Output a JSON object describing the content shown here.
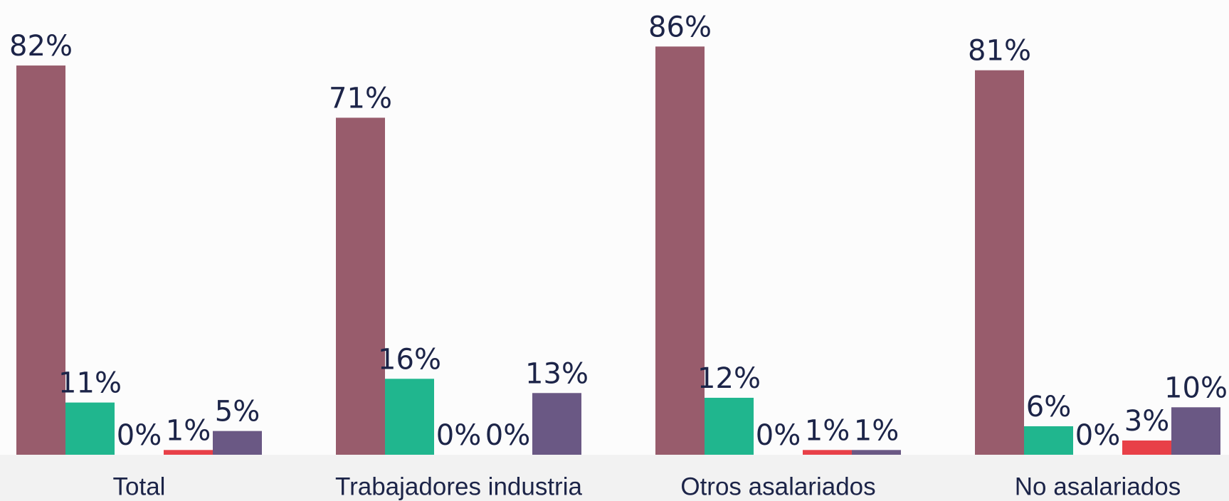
{
  "chart_data": {
    "type": "bar",
    "categories": [
      "Total",
      "Trabajadores industria",
      "Otros asalariados",
      "No asalariados"
    ],
    "series": [
      {
        "color": "#985c6c",
        "values": [
          82,
          71,
          86,
          81
        ],
        "value_labels": [
          "82%",
          "71%",
          "86%",
          "81%"
        ]
      },
      {
        "color": "#20b68e",
        "values": [
          11,
          16,
          12,
          6
        ],
        "value_labels": [
          "11%",
          "16%",
          "12%",
          "6%"
        ]
      },
      {
        "color": "#2f3a6e",
        "values": [
          0,
          0,
          0,
          0
        ],
        "value_labels": [
          "0%",
          "0%",
          "0%",
          "0%"
        ]
      },
      {
        "color": "#e84048",
        "values": [
          1,
          0,
          1,
          3
        ],
        "value_labels": [
          "1%",
          "0%",
          "1%",
          "3%"
        ]
      },
      {
        "color": "#6a5884",
        "values": [
          5,
          13,
          1,
          10
        ],
        "value_labels": [
          "5%",
          "13%",
          "1%",
          "10%"
        ]
      }
    ],
    "ylim": [
      0,
      100
    ]
  }
}
